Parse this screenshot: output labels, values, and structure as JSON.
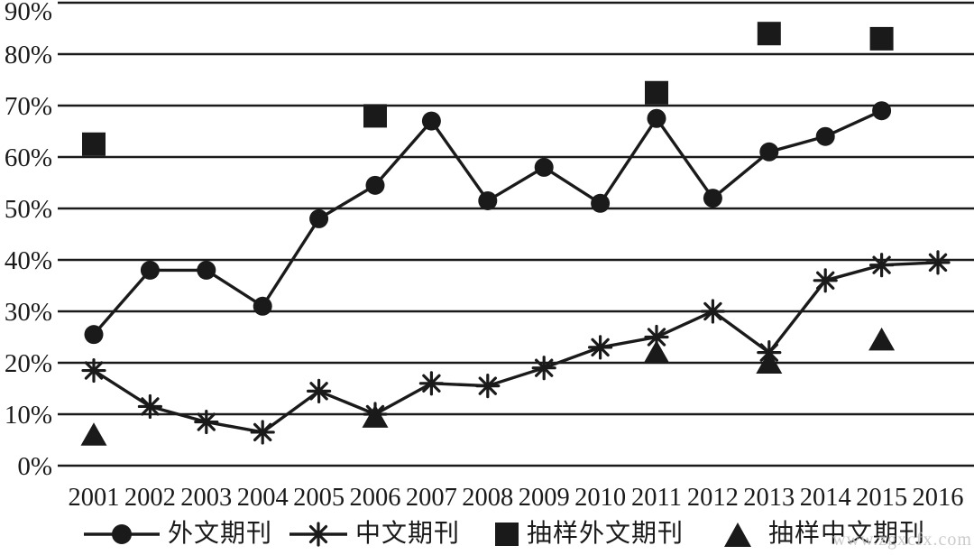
{
  "watermark": "www.zgxcfx.com",
  "colors": {
    "ink": "#1a1a1a",
    "background": "#ffffff",
    "watermark": "#c6c6c6"
  },
  "chart_data": {
    "type": "line",
    "title": "",
    "xlabel": "",
    "ylabel": "",
    "x_categories": [
      "2001",
      "2002",
      "2003",
      "2004",
      "2005",
      "2006",
      "2007",
      "2008",
      "2009",
      "2010",
      "2011",
      "2012",
      "2013",
      "2014",
      "2015",
      "2016"
    ],
    "y_ticks": [
      "0%",
      "10%",
      "20%",
      "30%",
      "40%",
      "50%",
      "60%",
      "70%",
      "80%",
      "90%"
    ],
    "ylim": [
      0,
      90
    ],
    "ytick_step": 10,
    "grid": "horizontal-only",
    "legend_position": "bottom",
    "series": [
      {
        "name": "外文期刊",
        "marker": "circle",
        "line": true,
        "points": [
          [
            2001,
            25.5
          ],
          [
            2002,
            38
          ],
          [
            2003,
            38
          ],
          [
            2004,
            31
          ],
          [
            2005,
            48
          ],
          [
            2006,
            54.5
          ],
          [
            2007,
            67
          ],
          [
            2008,
            51.5
          ],
          [
            2009,
            58
          ],
          [
            2010,
            51
          ],
          [
            2011,
            67.5
          ],
          [
            2012,
            52
          ],
          [
            2013,
            61
          ],
          [
            2014,
            64
          ],
          [
            2015,
            69
          ]
        ]
      },
      {
        "name": "中文期刊",
        "marker": "asterisk",
        "line": true,
        "points": [
          [
            2001,
            18.5
          ],
          [
            2002,
            11.5
          ],
          [
            2003,
            8.5
          ],
          [
            2004,
            6.5
          ],
          [
            2005,
            14.5
          ],
          [
            2006,
            10
          ],
          [
            2007,
            16
          ],
          [
            2008,
            15.5
          ],
          [
            2009,
            19
          ],
          [
            2010,
            23
          ],
          [
            2011,
            25
          ],
          [
            2012,
            30
          ],
          [
            2013,
            22
          ],
          [
            2014,
            36
          ],
          [
            2015,
            39
          ],
          [
            2016,
            39.5
          ]
        ]
      },
      {
        "name": "抽样外文期刊",
        "marker": "square",
        "line": false,
        "points": [
          [
            2001,
            62.5
          ],
          [
            2006,
            68
          ],
          [
            2011,
            72.5
          ],
          [
            2013,
            84
          ],
          [
            2015,
            83
          ]
        ]
      },
      {
        "name": "抽样中文期刊",
        "marker": "triangle",
        "line": false,
        "points": [
          [
            2001,
            6
          ],
          [
            2006,
            9.5
          ],
          [
            2011,
            22
          ],
          [
            2013,
            20
          ],
          [
            2015,
            24.5
          ]
        ]
      }
    ]
  }
}
